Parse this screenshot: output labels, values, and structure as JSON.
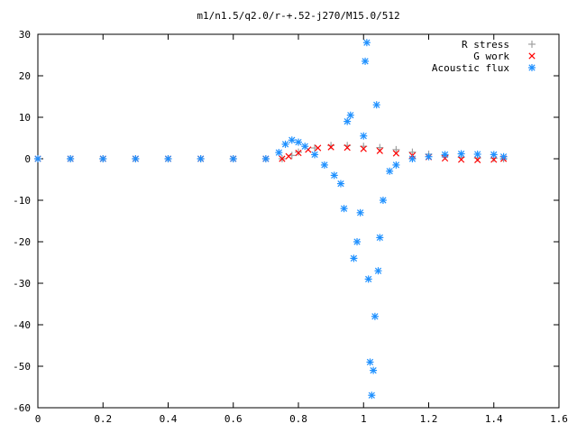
{
  "chart_data": {
    "type": "scatter",
    "title": "m1/n1.5/q2.0/r-+.52-j270/M15.0/512",
    "xlabel": "",
    "ylabel": "",
    "xlim": [
      0,
      1.6
    ],
    "ylim": [
      -60,
      30
    ],
    "x_ticks": [
      "0",
      "0.2",
      "0.4",
      "0.6",
      "0.8",
      "1",
      "1.2",
      "1.4",
      "1.6"
    ],
    "y_ticks": [
      "30",
      "20",
      "10",
      "0",
      "-10",
      "-20",
      "-30",
      "-40",
      "-50",
      "-60"
    ],
    "grid": false,
    "legend_position": "top-right",
    "series": [
      {
        "name": "R stress",
        "marker": "plus",
        "color": "#a0a0a0",
        "x": [
          0.0,
          0.1,
          0.2,
          0.3,
          0.4,
          0.5,
          0.6,
          0.7,
          0.75,
          0.78,
          0.8,
          0.85,
          0.9,
          0.95,
          1.0,
          1.05,
          1.1,
          1.15,
          1.2,
          1.25,
          1.3,
          1.35,
          1.4,
          1.43
        ],
        "y": [
          0.0,
          0.0,
          0.0,
          0.0,
          0.0,
          0.0,
          0.0,
          0.0,
          0.0,
          0.8,
          1.6,
          2.6,
          3.2,
          3.2,
          3.0,
          2.7,
          2.2,
          1.6,
          1.1,
          0.7,
          0.4,
          0.2,
          0.1,
          0.0
        ]
      },
      {
        "name": "G work",
        "marker": "cross",
        "color": "#ff0000",
        "x": [
          0.0,
          0.1,
          0.2,
          0.3,
          0.4,
          0.5,
          0.6,
          0.7,
          0.75,
          0.77,
          0.8,
          0.83,
          0.86,
          0.9,
          0.95,
          1.0,
          1.05,
          1.1,
          1.15,
          1.2,
          1.25,
          1.3,
          1.35,
          1.4,
          1.43
        ],
        "y": [
          0.0,
          0.0,
          0.0,
          0.0,
          0.0,
          0.0,
          0.0,
          0.0,
          0.0,
          0.6,
          1.4,
          2.2,
          2.6,
          2.8,
          2.7,
          2.4,
          1.9,
          1.3,
          0.8,
          0.4,
          0.1,
          -0.2,
          -0.3,
          -0.2,
          0.0
        ]
      },
      {
        "name": "Acoustic flux",
        "marker": "star",
        "color": "#1e90ff",
        "x": [
          0.0,
          0.1,
          0.2,
          0.3,
          0.4,
          0.5,
          0.6,
          0.7,
          0.74,
          0.76,
          0.78,
          0.8,
          0.82,
          0.85,
          0.88,
          0.91,
          0.93,
          0.94,
          0.95,
          0.96,
          0.97,
          0.98,
          0.99,
          1.0,
          1.005,
          1.01,
          1.015,
          1.02,
          1.025,
          1.03,
          1.035,
          1.04,
          1.045,
          1.05,
          1.06,
          1.08,
          1.1,
          1.15,
          1.2,
          1.25,
          1.3,
          1.35,
          1.4,
          1.43
        ],
        "y": [
          0.0,
          0.0,
          0.0,
          0.0,
          0.0,
          0.0,
          0.0,
          0.0,
          1.5,
          3.5,
          4.5,
          4.0,
          3.0,
          1.0,
          -1.5,
          -4.0,
          -6.0,
          -12.0,
          9.0,
          10.5,
          -24.0,
          -20.0,
          -13.0,
          5.5,
          23.5,
          28.0,
          -29.0,
          -49.0,
          -57.0,
          -51.0,
          -38.0,
          13.0,
          -27.0,
          -19.0,
          -10.0,
          -3.0,
          -1.5,
          0.0,
          0.5,
          1.0,
          1.2,
          1.1,
          1.0,
          0.5
        ]
      }
    ]
  }
}
